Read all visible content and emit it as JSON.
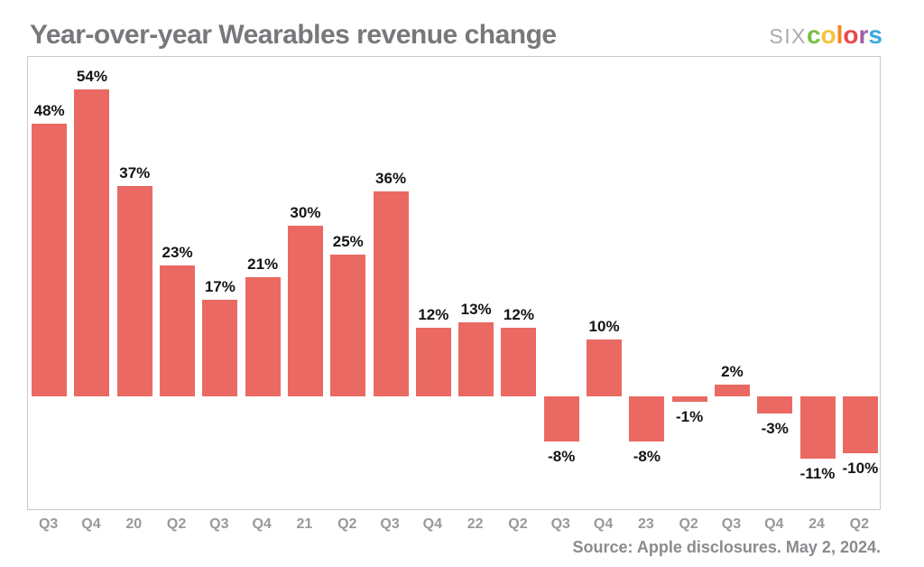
{
  "header": {
    "title": "Year-over-year Wearables revenue change",
    "logo": {
      "prefix": "SIX",
      "prefix_color": "#a8aaad",
      "letters": [
        {
          "char": "c",
          "color": "#76c043"
        },
        {
          "char": "o",
          "color": "#f6c23c"
        },
        {
          "char": "l",
          "color": "#f6881f"
        },
        {
          "char": "o",
          "color": "#e8484a"
        },
        {
          "char": "r",
          "color": "#a05fa5"
        },
        {
          "char": "s",
          "color": "#3ba8df"
        }
      ]
    }
  },
  "chart_data": {
    "type": "bar",
    "title": "Year-over-year Wearables revenue change",
    "categories": [
      "Q3",
      "Q4",
      "20",
      "Q2",
      "Q3",
      "Q4",
      "21",
      "Q2",
      "Q3",
      "Q4",
      "22",
      "Q2",
      "Q3",
      "Q4",
      "23",
      "Q2",
      "Q3",
      "Q4",
      "24",
      "Q2"
    ],
    "values": [
      48,
      54,
      37,
      23,
      17,
      21,
      30,
      25,
      36,
      12,
      13,
      12,
      -8,
      10,
      -8,
      -1,
      2,
      -3,
      -11,
      -10
    ],
    "labels": [
      "48%",
      "54%",
      "37%",
      "23%",
      "17%",
      "21%",
      "30%",
      "25%",
      "36%",
      "12%",
      "13%",
      "12%",
      "-8%",
      "10%",
      "-8%",
      "-1%",
      "2%",
      "-3%",
      "-11%",
      "-10%"
    ],
    "xlabel": "",
    "ylabel": "",
    "ylim": [
      -15,
      58
    ],
    "bar_color": "#ea6a63",
    "grid": false,
    "legend": false,
    "value_labels": "outside-end"
  },
  "footer": {
    "source": "Source: Apple disclosures. May 2, 2024."
  }
}
